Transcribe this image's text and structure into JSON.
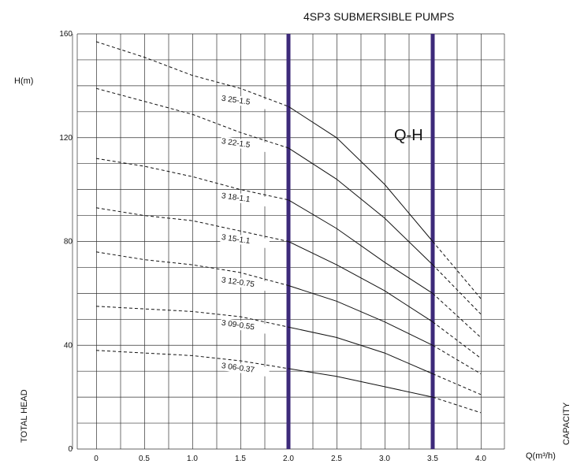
{
  "chart_data": {
    "type": "line",
    "title": "4SP3 SUBMERSIBLE PUMPS",
    "ylabel": "H(m)",
    "ylabel_side": "TOTAL HEAD",
    "xlabel": "Q(m³/h)",
    "xlabel_side": "CAPACITY",
    "annotation": "Q-H",
    "xlim": [
      0,
      4.0
    ],
    "ylim": [
      0,
      160
    ],
    "x_ticks": [
      "0",
      "0.5",
      "1.0",
      "1.5",
      "2.0",
      "2.5",
      "3.0",
      "3.5",
      "4.0"
    ],
    "y_ticks": [
      "0",
      "40",
      "80",
      "120",
      "160"
    ],
    "grid": true,
    "operating_range": [
      2.0,
      3.5
    ],
    "series": [
      {
        "name": "3 25-1.5",
        "x": [
          0,
          0.5,
          1.0,
          1.5,
          2.0,
          2.5,
          3.0,
          3.5,
          4.0
        ],
        "y": [
          157,
          151,
          144,
          139,
          132,
          120,
          102,
          80,
          58
        ]
      },
      {
        "name": "3 22-1.5",
        "x": [
          0,
          0.5,
          1.0,
          1.5,
          2.0,
          2.5,
          3.0,
          3.5,
          4.0
        ],
        "y": [
          139,
          134,
          129,
          122,
          116,
          104,
          89,
          71,
          52
        ]
      },
      {
        "name": "3 18-1.1",
        "x": [
          0,
          0.5,
          1.0,
          1.5,
          2.0,
          2.5,
          3.0,
          3.5,
          4.0
        ],
        "y": [
          112,
          109,
          105,
          100,
          96,
          85,
          72,
          60,
          43
        ]
      },
      {
        "name": "3 15-1.1",
        "x": [
          0,
          0.5,
          1.0,
          1.5,
          2.0,
          2.5,
          3.0,
          3.5,
          4.0
        ],
        "y": [
          93,
          90,
          88,
          84,
          80,
          71,
          61,
          49,
          35
        ]
      },
      {
        "name": "3 12-0.75",
        "x": [
          0,
          0.5,
          1.0,
          1.5,
          2.0,
          2.5,
          3.0,
          3.5,
          4.0
        ],
        "y": [
          76,
          73,
          71,
          68,
          63,
          57,
          49,
          40,
          29
        ]
      },
      {
        "name": "3 09-0.55",
        "x": [
          0,
          0.5,
          1.0,
          1.5,
          2.0,
          2.5,
          3.0,
          3.5,
          4.0
        ],
        "y": [
          55,
          54,
          53,
          51,
          47,
          43,
          37,
          29,
          21
        ]
      },
      {
        "name": "3 06-0.37",
        "x": [
          0,
          0.5,
          1.0,
          1.5,
          2.0,
          2.5,
          3.0,
          3.5,
          4.0
        ],
        "y": [
          38,
          37,
          36,
          34,
          31,
          28,
          24,
          20,
          14
        ]
      }
    ]
  }
}
